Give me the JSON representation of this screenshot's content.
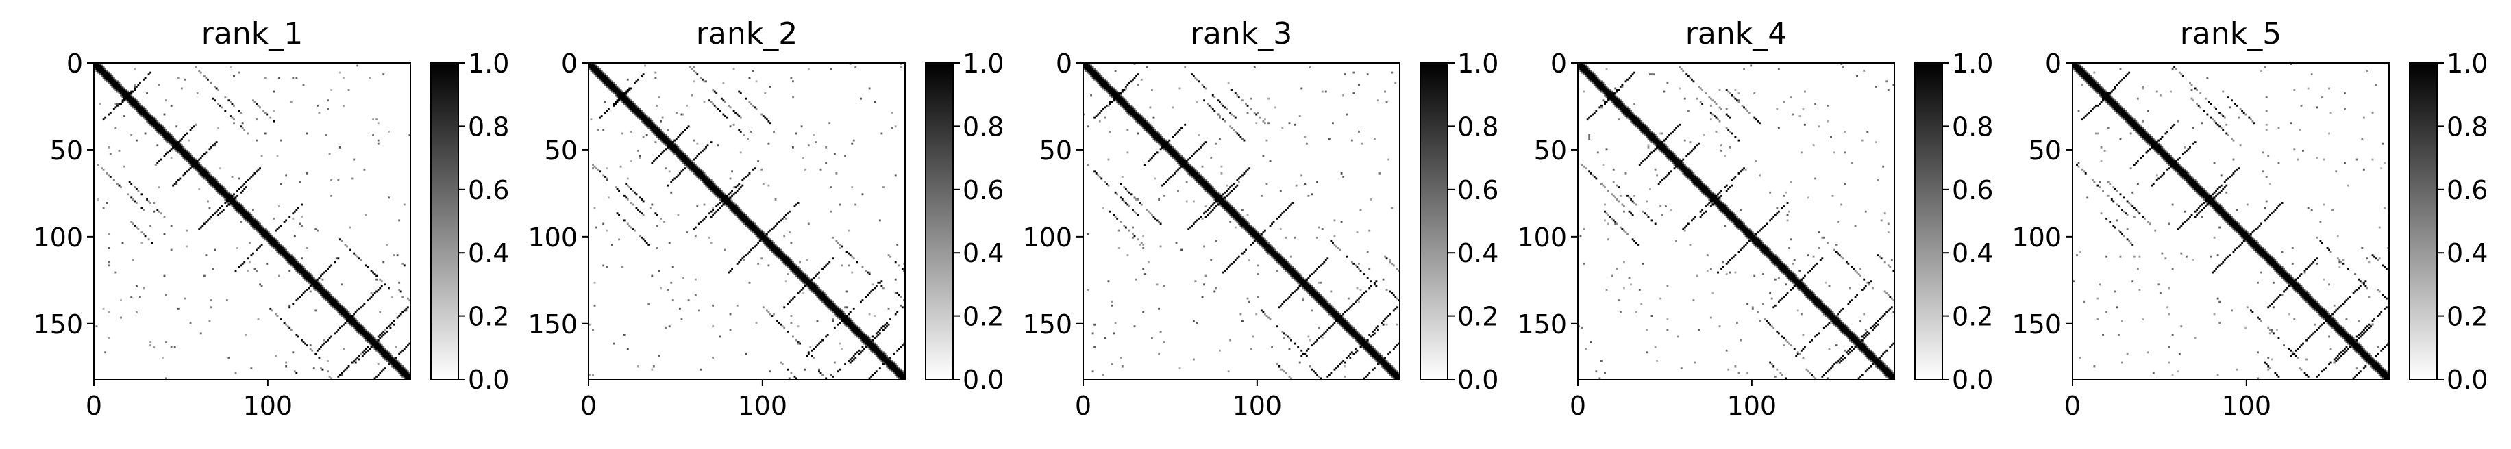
{
  "chart_data": [
    {
      "type": "heatmap",
      "title": "rank_1",
      "x_ticks": [
        "0",
        "100"
      ],
      "y_ticks": [
        "0",
        "50",
        "100",
        "150"
      ],
      "xlim": [
        0,
        182
      ],
      "ylim": [
        182,
        0
      ],
      "colorbar": {
        "ticks": [
          "0.0",
          "0.2",
          "0.4",
          "0.6",
          "0.8",
          "1.0"
        ],
        "range": [
          0,
          1
        ],
        "colormap": "Greys"
      }
    },
    {
      "type": "heatmap",
      "title": "rank_2",
      "x_ticks": [
        "0",
        "100"
      ],
      "y_ticks": [
        "0",
        "50",
        "100",
        "150"
      ],
      "xlim": [
        0,
        182
      ],
      "ylim": [
        182,
        0
      ],
      "colorbar": {
        "ticks": [
          "0.0",
          "0.2",
          "0.4",
          "0.6",
          "0.8",
          "1.0"
        ],
        "range": [
          0,
          1
        ],
        "colormap": "Greys"
      }
    },
    {
      "type": "heatmap",
      "title": "rank_3",
      "x_ticks": [
        "0",
        "100"
      ],
      "y_ticks": [
        "0",
        "50",
        "100",
        "150"
      ],
      "xlim": [
        0,
        182
      ],
      "ylim": [
        182,
        0
      ],
      "colorbar": {
        "ticks": [
          "0.0",
          "0.2",
          "0.4",
          "0.6",
          "0.8",
          "1.0"
        ],
        "range": [
          0,
          1
        ],
        "colormap": "Greys"
      }
    },
    {
      "type": "heatmap",
      "title": "rank_4",
      "x_ticks": [
        "0",
        "100"
      ],
      "y_ticks": [
        "0",
        "50",
        "100",
        "150"
      ],
      "xlim": [
        0,
        182
      ],
      "ylim": [
        182,
        0
      ],
      "colorbar": {
        "ticks": [
          "0.0",
          "0.2",
          "0.4",
          "0.6",
          "0.8",
          "1.0"
        ],
        "range": [
          0,
          1
        ],
        "colormap": "Greys"
      }
    },
    {
      "type": "heatmap",
      "title": "rank_5",
      "x_ticks": [
        "0",
        "100"
      ],
      "y_ticks": [
        "0",
        "50",
        "100",
        "150"
      ],
      "xlim": [
        0,
        182
      ],
      "ylim": [
        182,
        0
      ],
      "colorbar": {
        "ticks": [
          "0.0",
          "0.2",
          "0.4",
          "0.6",
          "0.8",
          "1.0"
        ],
        "range": [
          0,
          1
        ],
        "colormap": "Greys"
      }
    }
  ]
}
